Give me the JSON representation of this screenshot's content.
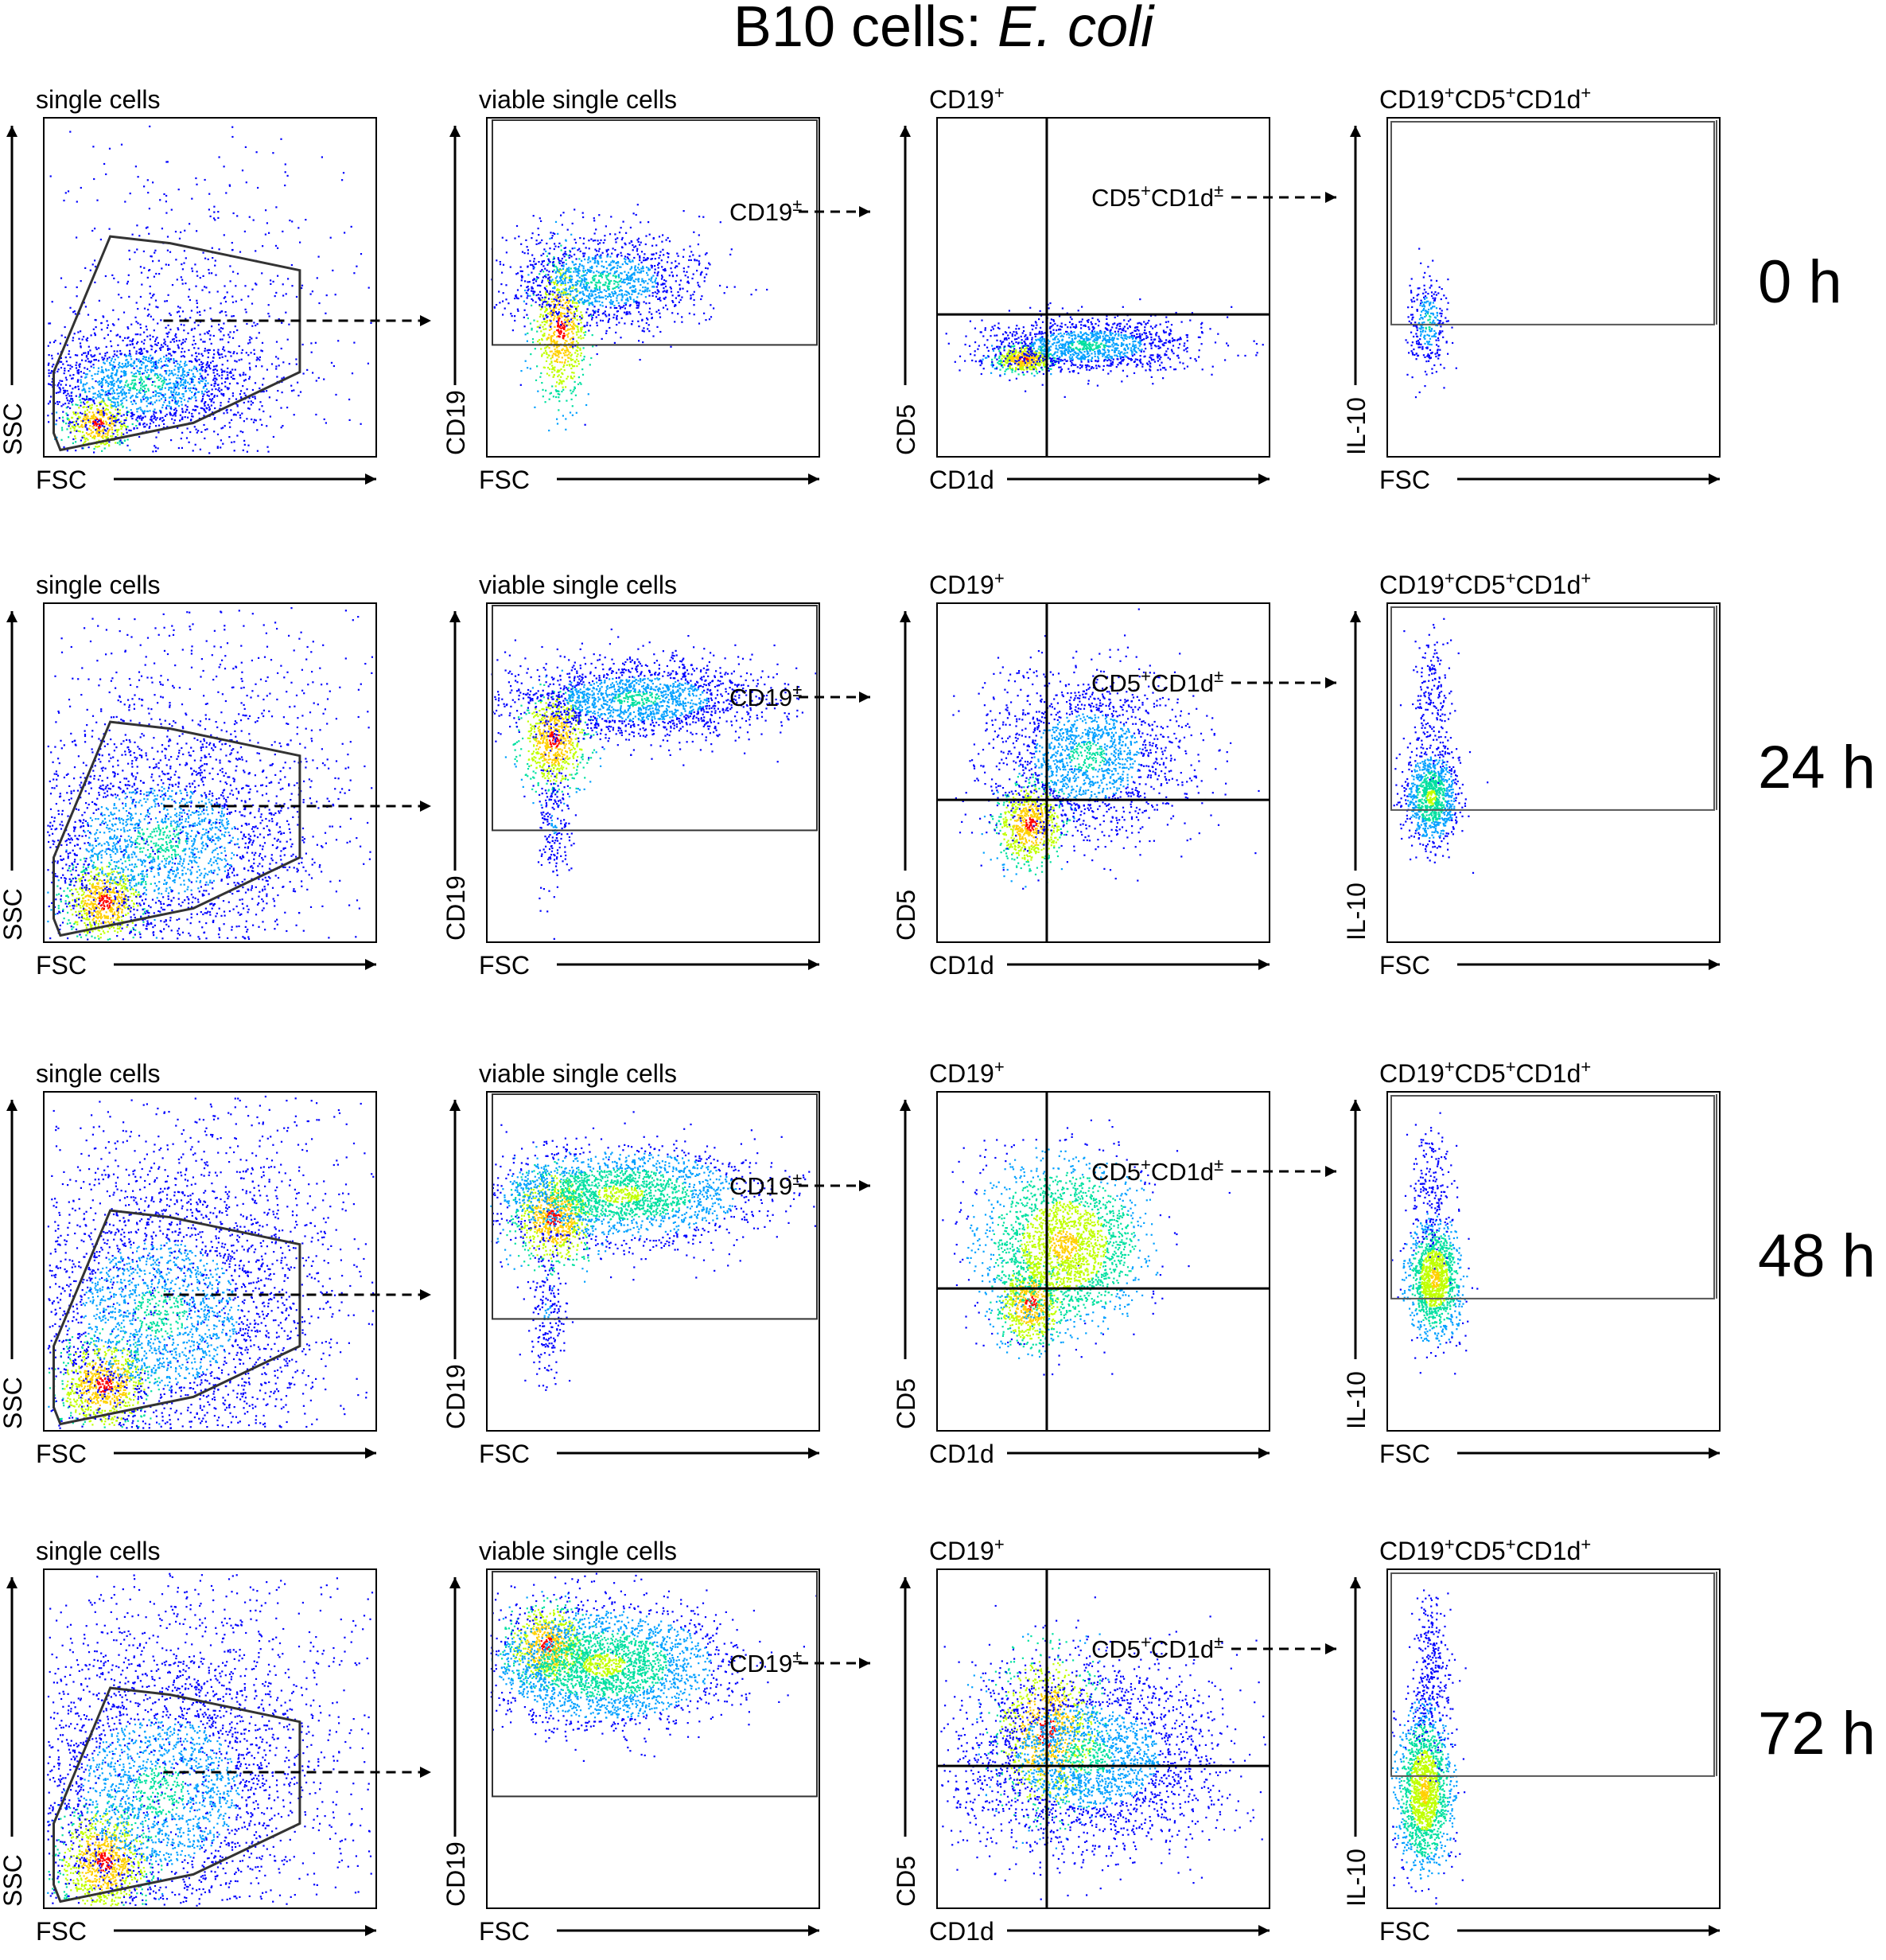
{
  "figure_title": {
    "main": "B10 cells: ",
    "italic": "E. coli"
  },
  "chart_data": {
    "type": "flow-cytometry-gating-grid",
    "rows": [
      {
        "time": "0 h",
        "panels": [
          {
            "title": "single cells",
            "xlabel": "FSC",
            "ylabel": "SSC",
            "gate_label": ""
          },
          {
            "title": "viable single cells",
            "xlabel": "FSC",
            "ylabel": "CD19",
            "gate_label": "CD19",
            "gate_sup": "±"
          },
          {
            "title": "CD19",
            "title_sup": "+",
            "xlabel": "CD1d",
            "ylabel": "CD5",
            "gate_label": "CD5",
            "gate_sup": "+",
            "gate_label2": "CD1d",
            "gate_sup2": "±"
          },
          {
            "title": "CD19",
            "title_sup": "+",
            "title2": "CD5",
            "title2_sup": "+",
            "title3": "CD1d",
            "title3_sup": "+",
            "xlabel": "FSC",
            "ylabel": "IL-10",
            "gate_label": ""
          }
        ]
      },
      {
        "time": "24 h",
        "panels": [
          {
            "title": "single cells",
            "xlabel": "FSC",
            "ylabel": "SSC",
            "gate_label": ""
          },
          {
            "title": "viable single cells",
            "xlabel": "FSC",
            "ylabel": "CD19",
            "gate_label": "CD19",
            "gate_sup": "±"
          },
          {
            "title": "CD19",
            "title_sup": "+",
            "xlabel": "CD1d",
            "ylabel": "CD5",
            "gate_label": "CD5",
            "gate_sup": "+",
            "gate_label2": "CD1d",
            "gate_sup2": "±"
          },
          {
            "title": "CD19",
            "title_sup": "+",
            "title2": "CD5",
            "title2_sup": "+",
            "title3": "CD1d",
            "title3_sup": "+",
            "xlabel": "FSC",
            "ylabel": "IL-10",
            "gate_label": ""
          }
        ]
      },
      {
        "time": "48 h",
        "panels": [
          {
            "title": "single cells",
            "xlabel": "FSC",
            "ylabel": "SSC",
            "gate_label": ""
          },
          {
            "title": "viable single cells",
            "xlabel": "FSC",
            "ylabel": "CD19",
            "gate_label": "CD19",
            "gate_sup": "±"
          },
          {
            "title": "CD19",
            "title_sup": "+",
            "xlabel": "CD1d",
            "ylabel": "CD5",
            "gate_label": "CD5",
            "gate_sup": "+",
            "gate_label2": "CD1d",
            "gate_sup2": "±"
          },
          {
            "title": "CD19",
            "title_sup": "+",
            "title2": "CD5",
            "title2_sup": "+",
            "title3": "CD1d",
            "title3_sup": "+",
            "xlabel": "FSC",
            "ylabel": "IL-10",
            "gate_label": ""
          }
        ]
      },
      {
        "time": "72 h",
        "panels": [
          {
            "title": "single cells",
            "xlabel": "FSC",
            "ylabel": "SSC",
            "gate_label": ""
          },
          {
            "title": "viable single cells",
            "xlabel": "FSC",
            "ylabel": "CD19",
            "gate_label": "CD19",
            "gate_sup": "±"
          },
          {
            "title": "CD19",
            "title_sup": "+",
            "xlabel": "CD1d",
            "ylabel": "CD5",
            "gate_label": "CD5",
            "gate_sup": "+",
            "gate_label2": "CD1d",
            "gate_sup2": "±"
          },
          {
            "title": "CD19",
            "title_sup": "+",
            "title2": "CD5",
            "title2_sup": "+",
            "title3": "CD1d",
            "title3_sup": "+",
            "xlabel": "FSC",
            "ylabel": "IL-10",
            "gate_label": ""
          }
        ]
      }
    ],
    "density_colors": [
      "#0000ff",
      "#00a0ff",
      "#00e0a0",
      "#c0ff00",
      "#ffd000",
      "#ff0000"
    ]
  }
}
